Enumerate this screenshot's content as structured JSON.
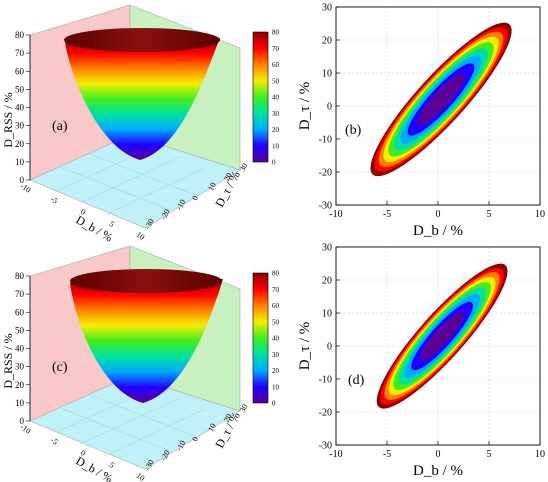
{
  "colorbar": {
    "ticks": [
      "0",
      "10",
      "20",
      "30",
      "40",
      "50",
      "60",
      "70",
      "80"
    ],
    "colors": [
      "#5a0096",
      "#2200ff",
      "#00aaff",
      "#00e0a0",
      "#40ee20",
      "#f2ee00",
      "#ff8000",
      "#ff0000",
      "#8b0000"
    ]
  },
  "panels3d": [
    {
      "letter": "(a)",
      "zlabel": "D_RSS / %",
      "zticks": [
        "0",
        "10",
        "20",
        "30",
        "40",
        "50",
        "60",
        "70",
        "80"
      ],
      "xlabel": "D_b / %",
      "xticks": [
        "-10",
        "-5",
        "0",
        "5",
        "10"
      ],
      "ylabel": "D_τ / %",
      "yticks": [
        "30",
        "20",
        "10",
        "0",
        "-10",
        "-20",
        "-30"
      ],
      "colorbar_ticks": [
        "0",
        "10",
        "20",
        "30",
        "40",
        "50",
        "60",
        "70",
        "80"
      ]
    },
    {
      "letter": "(c)",
      "zlabel": "D_RSS / %",
      "zticks": [
        "0",
        "10",
        "20",
        "30",
        "40",
        "50",
        "60",
        "70",
        "80"
      ],
      "xlabel": "D_b / %",
      "xticks": [
        "-10",
        "-5",
        "0",
        "5",
        "10"
      ],
      "ylabel": "D_τ / %",
      "yticks": [
        "30",
        "20",
        "10",
        "0",
        "-10",
        "-20",
        "-30"
      ],
      "colorbar_ticks": [
        "0",
        "10",
        "20",
        "30",
        "40",
        "50",
        "60",
        "70",
        "80"
      ]
    }
  ],
  "chart_data": [
    {
      "type": "area",
      "subtype": "3d-surface",
      "panel": "(a)",
      "xlabel": "D_b / %",
      "ylabel": "D_τ / %",
      "zlabel": "D_RSS / %",
      "xlim": [
        -10,
        10
      ],
      "ylim": [
        -30,
        30
      ],
      "zlim": [
        0,
        80
      ],
      "z_min": 0,
      "z_max": 80
    },
    {
      "type": "heatmap",
      "subtype": "contour-ellipse",
      "panel": "(b)",
      "xlabel": "D_b / %",
      "ylabel": "D_τ / %",
      "xlim": [
        -10,
        10
      ],
      "ylim": [
        -30,
        30
      ],
      "xticks": [
        "-10",
        "-5",
        "0",
        "5",
        "10"
      ],
      "yticks": [
        "-30",
        "-20",
        "-10",
        "0",
        "10",
        "20",
        "30"
      ],
      "grid": true,
      "center": [
        0.3,
        2.0
      ],
      "extent_x": [
        -6.2,
        7.2
      ],
      "extent_y": [
        -21.0,
        24.5
      ],
      "levels": [
        0,
        10,
        20,
        30,
        40,
        50,
        60,
        70,
        80
      ]
    },
    {
      "type": "area",
      "subtype": "3d-surface",
      "panel": "(c)",
      "xlabel": "D_b / %",
      "ylabel": "D_τ / %",
      "zlabel": "D_RSS / %",
      "xlim": [
        -10,
        10
      ],
      "ylim": [
        -30,
        30
      ],
      "zlim": [
        0,
        80
      ],
      "z_min": 0,
      "z_max": 80
    },
    {
      "type": "heatmap",
      "subtype": "contour-ellipse",
      "panel": "(d)",
      "xlabel": "D_b / %",
      "ylabel": "D_τ / %",
      "xlim": [
        -10,
        10
      ],
      "ylim": [
        -30,
        30
      ],
      "xticks": [
        "-10",
        "-5",
        "0",
        "5",
        "10"
      ],
      "yticks": [
        "-30",
        "-20",
        "-10",
        "0",
        "10",
        "20",
        "30"
      ],
      "grid": true,
      "center": [
        0.4,
        3.0
      ],
      "extent_x": [
        -5.8,
        6.6
      ],
      "extent_y": [
        -18.5,
        24.5
      ],
      "levels": [
        0,
        10,
        20,
        30,
        40,
        50,
        60,
        70,
        80
      ]
    }
  ]
}
